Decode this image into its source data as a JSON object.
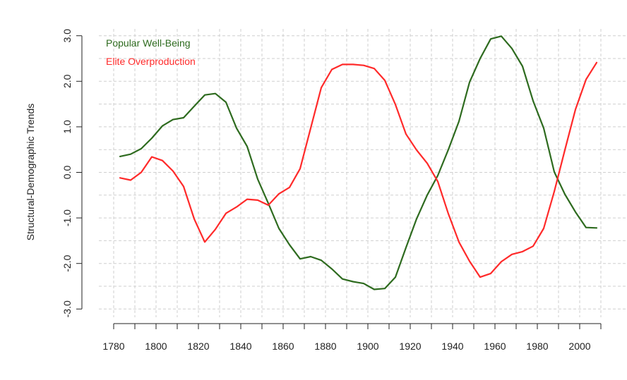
{
  "chart_data": {
    "type": "line",
    "title": "",
    "xlabel": "",
    "ylabel": "Structural-Demographic Trends",
    "xlim": [
      1773,
      2012
    ],
    "ylim": [
      -3.15,
      3.15
    ],
    "x_ticks": [
      1780,
      1800,
      1820,
      1840,
      1860,
      1880,
      1900,
      1920,
      1940,
      1960,
      1980,
      2000
    ],
    "y_ticks": [
      -3.0,
      -2.0,
      -1.0,
      0.0,
      1.0,
      2.0,
      3.0
    ],
    "y_tick_labels": [
      "-3.0",
      "-2.0",
      "-1.0",
      "0.0",
      "1.0",
      "2.0",
      "3.0"
    ],
    "grid": true,
    "legend_position": "top-left",
    "series": [
      {
        "name": "Popular Well-Being",
        "color": "#2e6b1f",
        "x": [
          1783,
          1788,
          1793,
          1798,
          1803,
          1808,
          1813,
          1818,
          1823,
          1828,
          1833,
          1838,
          1843,
          1848,
          1853,
          1858,
          1863,
          1868,
          1873,
          1878,
          1883,
          1888,
          1893,
          1898,
          1903,
          1908,
          1913,
          1918,
          1923,
          1928,
          1933,
          1938,
          1943,
          1948,
          1953,
          1958,
          1963,
          1968,
          1973,
          1978,
          1983,
          1988,
          1993,
          1998,
          2003,
          2008
        ],
        "y": [
          0.35,
          0.4,
          0.52,
          0.75,
          1.02,
          1.16,
          1.2,
          1.45,
          1.7,
          1.73,
          1.54,
          0.97,
          0.57,
          -0.15,
          -0.68,
          -1.23,
          -1.59,
          -1.9,
          -1.85,
          -1.93,
          -2.12,
          -2.34,
          -2.4,
          -2.44,
          -2.57,
          -2.55,
          -2.3,
          -1.65,
          -1.02,
          -0.5,
          -0.07,
          0.5,
          1.12,
          1.98,
          2.5,
          2.93,
          2.99,
          2.72,
          2.33,
          1.57,
          0.97,
          0.01,
          -0.48,
          -0.87,
          -1.21,
          -1.22
        ]
      },
      {
        "name": "Elite Overproduction",
        "color": "#ff2a2a",
        "x": [
          1783,
          1788,
          1793,
          1798,
          1803,
          1808,
          1813,
          1818,
          1823,
          1828,
          1833,
          1838,
          1843,
          1848,
          1853,
          1858,
          1863,
          1868,
          1873,
          1878,
          1883,
          1888,
          1893,
          1898,
          1903,
          1908,
          1913,
          1918,
          1923,
          1928,
          1933,
          1938,
          1943,
          1948,
          1953,
          1958,
          1963,
          1968,
          1973,
          1978,
          1983,
          1988,
          1993,
          1998,
          2003,
          2008
        ],
        "y": [
          -0.12,
          -0.17,
          0.0,
          0.34,
          0.26,
          0.03,
          -0.31,
          -1.02,
          -1.53,
          -1.25,
          -0.9,
          -0.76,
          -0.59,
          -0.61,
          -0.72,
          -0.47,
          -0.33,
          0.08,
          0.97,
          1.86,
          2.26,
          2.37,
          2.37,
          2.35,
          2.28,
          2.02,
          1.49,
          0.84,
          0.49,
          0.2,
          -0.2,
          -0.91,
          -1.53,
          -1.95,
          -2.3,
          -2.22,
          -1.96,
          -1.8,
          -1.74,
          -1.62,
          -1.23,
          -0.42,
          0.49,
          1.38,
          2.04,
          2.41
        ]
      }
    ]
  },
  "legend": {
    "items": [
      {
        "label": "Popular Well-Being",
        "color": "#2e6b1f"
      },
      {
        "label": "Elite Overproduction",
        "color": "#ff2a2a"
      }
    ]
  }
}
